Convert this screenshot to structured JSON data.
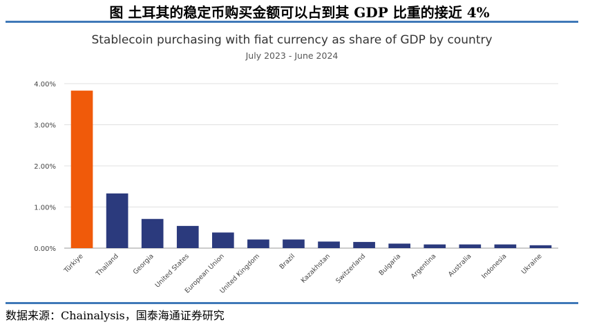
{
  "figure_caption": "图 土耳其的稳定币购买金额可以占到其 GDP 比重的接近 4%",
  "source_note": "数据来源：Chainalysis，国泰海通证券研究",
  "colors": {
    "highlight": "#f05a0a",
    "bar": "#2b3a7d",
    "rule": "#3f78b8",
    "grid": "#e0e0e0"
  },
  "chart_data": {
    "type": "bar",
    "title": "Stablecoin purchasing with fiat currency as share of GDP by country",
    "subtitle": "July 2023 - June 2024",
    "xlabel": "",
    "ylabel": "",
    "categories": [
      "Türkiye",
      "Thailand",
      "Georgia",
      "United States",
      "European Union",
      "United Kingdom",
      "Brazil",
      "Kazakhstan",
      "Switzerland",
      "Bulgaria",
      "Argentina",
      "Australia",
      "Indonesia",
      "Ukraine"
    ],
    "values": [
      3.83,
      1.33,
      0.71,
      0.54,
      0.38,
      0.21,
      0.21,
      0.16,
      0.15,
      0.11,
      0.09,
      0.09,
      0.09,
      0.07
    ],
    "highlight_index": 0,
    "ylim": [
      0,
      4.0
    ],
    "yticks": [
      0,
      1,
      2,
      3,
      4
    ],
    "ytick_labels": [
      "0.00%",
      "1.00%",
      "2.00%",
      "3.00%",
      "4.00%"
    ],
    "grid": true,
    "legend": "none"
  }
}
